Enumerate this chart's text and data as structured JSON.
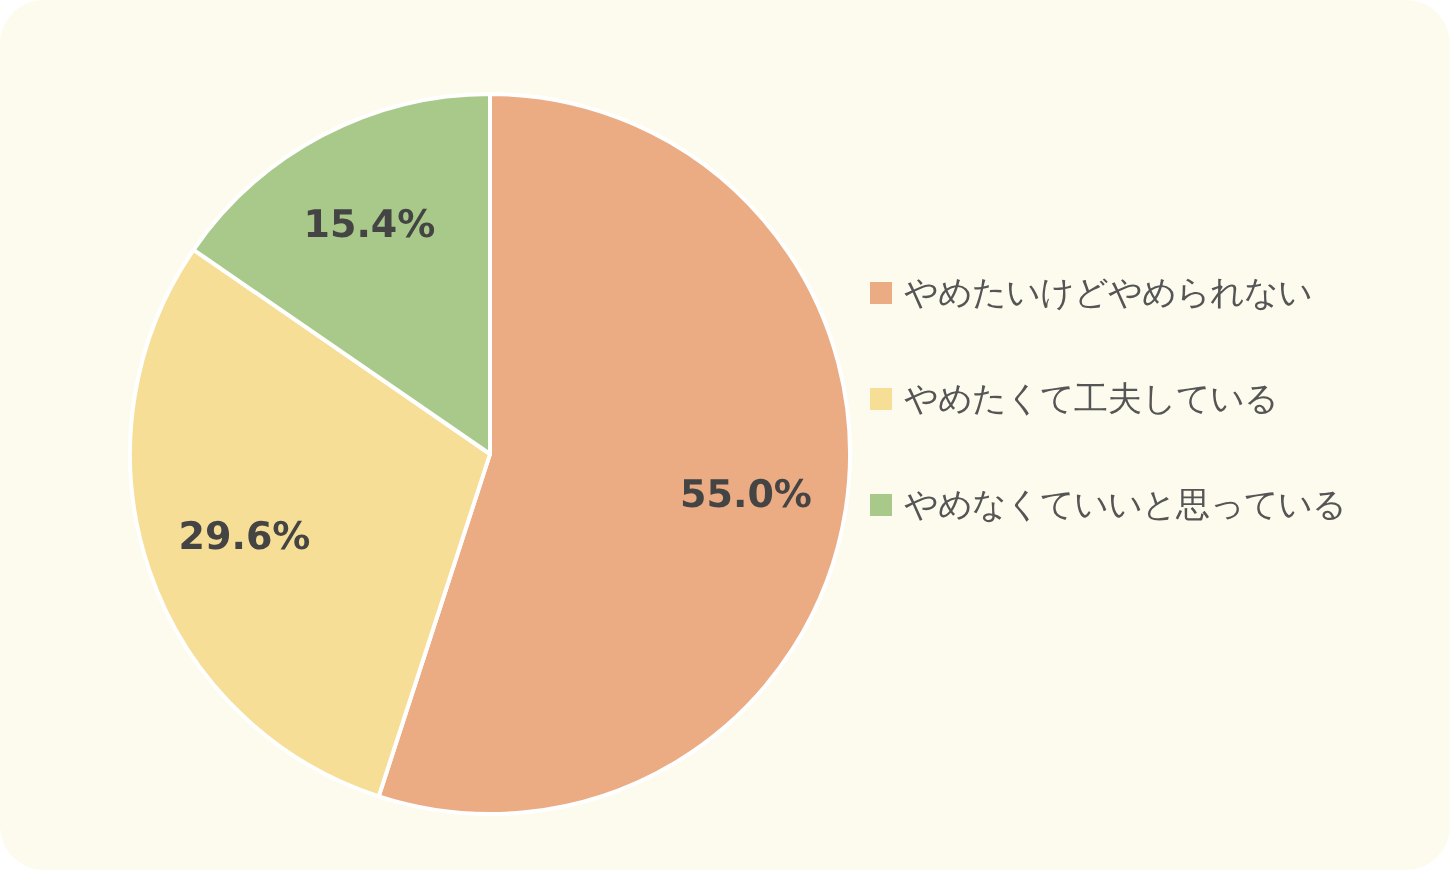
{
  "chart_data": {
    "type": "pie",
    "categories": [
      "やめたいけどやめられない",
      "やめたくて工夫している",
      "やめなくていいと思っている"
    ],
    "values": [
      55.0,
      29.6,
      15.4
    ],
    "colors": [
      "#ebab83",
      "#f7de96",
      "#a8c98a"
    ],
    "value_labels": [
      "55.0%",
      "29.6%",
      "15.4%"
    ],
    "legend": "right"
  }
}
